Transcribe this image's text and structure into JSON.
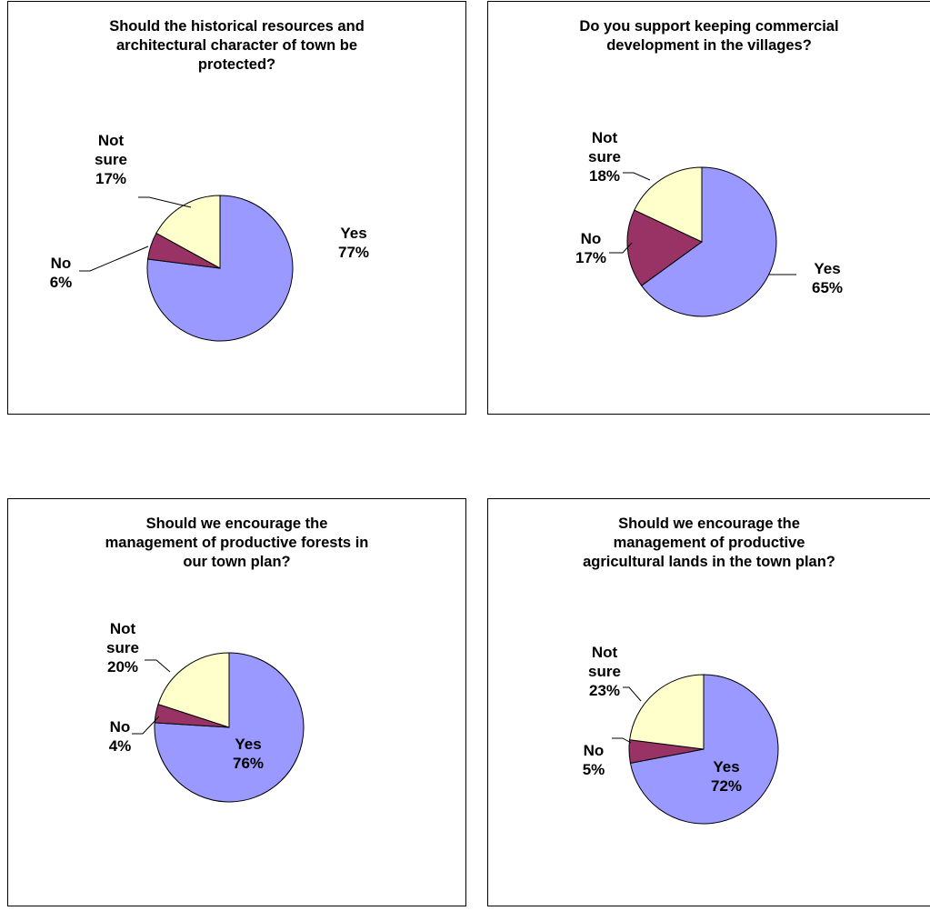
{
  "colors": {
    "yes": "#9999ff",
    "no": "#993366",
    "not_sure": "#ffffcc"
  },
  "chart_data": [
    {
      "type": "pie",
      "title": "Should the historical resources and\narchitectural character of town be\nprotected?",
      "slices": [
        {
          "label": "Yes",
          "percent_label": "77%",
          "value": 77
        },
        {
          "label": "No",
          "percent_label": "6%",
          "value": 6
        },
        {
          "label": "Not sure",
          "percent_label": "17%",
          "value": 17
        }
      ]
    },
    {
      "type": "pie",
      "title": "Do you support keeping commercial\ndevelopment in the villages?",
      "slices": [
        {
          "label": "Yes",
          "percent_label": "65%",
          "value": 65
        },
        {
          "label": "No",
          "percent_label": "17%",
          "value": 17
        },
        {
          "label": "Not sure",
          "percent_label": "18%",
          "value": 18
        }
      ]
    },
    {
      "type": "pie",
      "title": "Should we encourage the\nmanagement of productive forests in\nour town plan?",
      "slices": [
        {
          "label": "Yes",
          "percent_label": "76%",
          "value": 76
        },
        {
          "label": "No",
          "percent_label": "4%",
          "value": 4
        },
        {
          "label": "Not sure",
          "percent_label": "20%",
          "value": 20
        }
      ]
    },
    {
      "type": "pie",
      "title": "Should we encourage the\nmanagement of productive\nagricultural lands in the town plan?",
      "slices": [
        {
          "label": "Yes",
          "percent_label": "72%",
          "value": 72
        },
        {
          "label": "No",
          "percent_label": "5%",
          "value": 5
        },
        {
          "label": "Not sure",
          "percent_label": "23%",
          "value": 23
        }
      ]
    }
  ]
}
